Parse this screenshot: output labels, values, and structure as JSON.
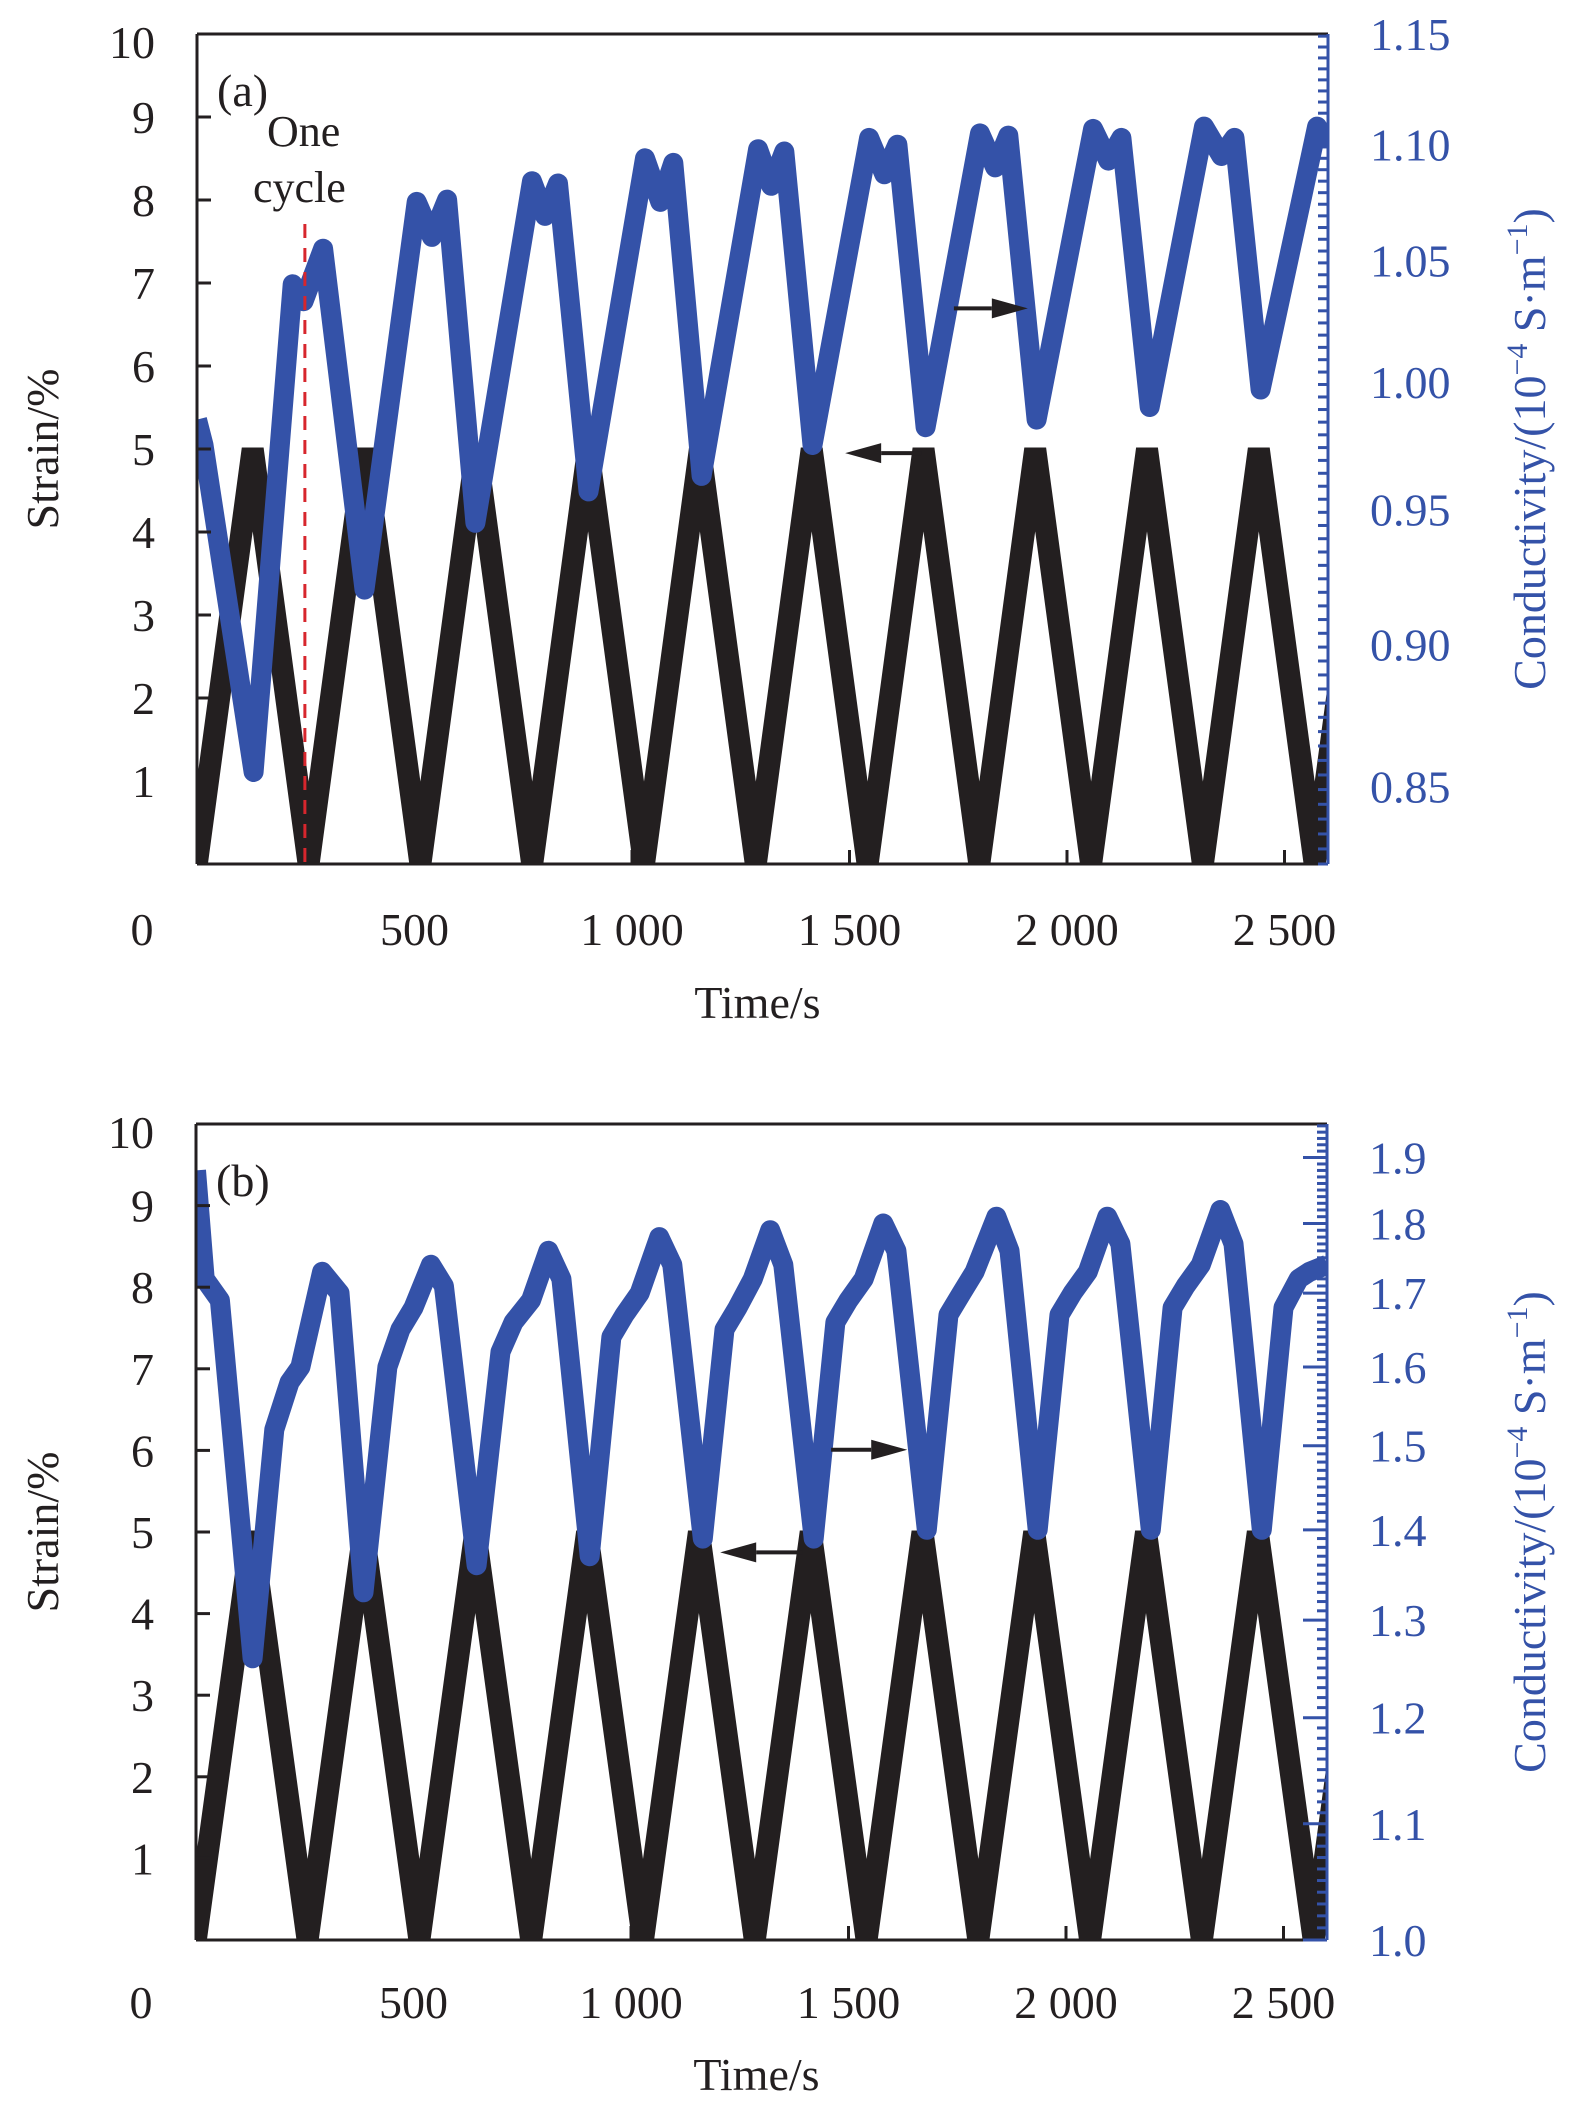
{
  "chart_data": [
    {
      "type": "line",
      "panel_label": "(a)",
      "xlabel": "Time/s",
      "ylabel": "Strain/%",
      "y2label_prefix": "Conductivity/(10",
      "y2label_exp": "−4",
      "y2label_mid": " S·m",
      "y2label_exp2": "−1",
      "y2label_suffix": ")",
      "xlim": [
        0,
        2600
      ],
      "ylim": [
        0,
        10
      ],
      "y2lim": [
        0.824,
        1.15
      ],
      "y2scale": "log",
      "x_ticks": [
        0,
        500,
        1000,
        1500,
        2000,
        2500
      ],
      "x_tick_labels": [
        "0",
        "500",
        "1 000",
        "1 500",
        "2 000",
        "2 500"
      ],
      "y_ticks": [
        0,
        1,
        2,
        3,
        4,
        5,
        6,
        7,
        8,
        9,
        10
      ],
      "y_tick_labels": [
        "0",
        "1",
        "2",
        "3",
        "4",
        "5",
        "6",
        "7",
        "8",
        "9",
        "10"
      ],
      "y2_ticks": [
        0.85,
        0.9,
        0.95,
        1.0,
        1.05,
        1.1,
        1.15
      ],
      "y2_tick_labels": [
        "0.85",
        "0.90",
        "0.95",
        "1.00",
        "1.05",
        "1.10",
        "1.15"
      ],
      "annotation": {
        "text_line1": "One",
        "text_line2": "cycle",
        "x": 248
      },
      "arrows": [
        {
          "direction": "right",
          "series": "Conductivity",
          "x_from": 1740,
          "x_to": 1910,
          "y2": 1.03
        },
        {
          "direction": "left",
          "series": "Strain",
          "x_from": 1665,
          "x_to": 1490,
          "y": 4.95
        }
      ],
      "colors": {
        "strain": "#231f20",
        "conductivity": "#3452a8",
        "annotation_line": "#d7262d"
      },
      "series": [
        {
          "name": "Strain",
          "axis": "left",
          "period": 257,
          "amplitude": 5.0,
          "x_peaks": [
            128,
            385,
            642,
            899,
            1156,
            1413,
            1670,
            1927,
            2184,
            2441
          ]
        },
        {
          "name": "Conductivity",
          "axis": "right",
          "points": [
            [
              0,
              0.985
            ],
            [
              15,
              0.975
            ],
            [
              130,
              0.855
            ],
            [
              220,
              1.04
            ],
            [
              245,
              1.033
            ],
            [
              290,
              1.055
            ],
            [
              385,
              0.92
            ],
            [
              505,
              1.075
            ],
            [
              540,
              1.06
            ],
            [
              575,
              1.076
            ],
            [
              640,
              0.945
            ],
            [
              770,
              1.084
            ],
            [
              800,
              1.069
            ],
            [
              830,
              1.083
            ],
            [
              900,
              0.957
            ],
            [
              1030,
              1.094
            ],
            [
              1065,
              1.075
            ],
            [
              1095,
              1.092
            ],
            [
              1160,
              0.963
            ],
            [
              1290,
              1.098
            ],
            [
              1320,
              1.082
            ],
            [
              1350,
              1.097
            ],
            [
              1415,
              0.975
            ],
            [
              1545,
              1.103
            ],
            [
              1580,
              1.087
            ],
            [
              1610,
              1.1
            ],
            [
              1675,
              0.982
            ],
            [
              1800,
              1.105
            ],
            [
              1835,
              1.09
            ],
            [
              1865,
              1.104
            ],
            [
              1930,
              0.985
            ],
            [
              2060,
              1.107
            ],
            [
              2095,
              1.093
            ],
            [
              2125,
              1.103
            ],
            [
              2190,
              0.99
            ],
            [
              2315,
              1.108
            ],
            [
              2355,
              1.095
            ],
            [
              2385,
              1.103
            ],
            [
              2445,
              0.997
            ],
            [
              2575,
              1.108
            ],
            [
              2600,
              1.1
            ]
          ]
        }
      ]
    },
    {
      "type": "line",
      "panel_label": "(b)",
      "xlabel": "Time/s",
      "ylabel": "Strain/%",
      "y2label_prefix": "Conductivity/(10",
      "y2label_exp": "−4",
      "y2label_mid": " S·m",
      "y2label_exp2": "−1",
      "y2label_suffix": ")",
      "xlim": [
        0,
        2600
      ],
      "ylim": [
        0,
        10
      ],
      "y2lim": [
        1.0,
        1.953
      ],
      "y2scale": "log",
      "x_ticks": [
        0,
        500,
        1000,
        1500,
        2000,
        2500
      ],
      "x_tick_labels": [
        "0",
        "500",
        "1 000",
        "1 500",
        "2 000",
        "2 500"
      ],
      "y_ticks": [
        0,
        1,
        2,
        3,
        4,
        5,
        6,
        7,
        8,
        9,
        10
      ],
      "y_tick_labels": [
        "0",
        "1",
        "2",
        "3",
        "4",
        "5",
        "6",
        "7",
        "8",
        "9",
        "10"
      ],
      "y2_ticks": [
        1.0,
        1.1,
        1.2,
        1.3,
        1.4,
        1.5,
        1.6,
        1.7,
        1.8,
        1.9
      ],
      "y2_tick_labels": [
        "1.0",
        "1.1",
        "1.2",
        "1.3",
        "1.4",
        "1.5",
        "1.6",
        "1.7",
        "1.8",
        "1.9"
      ],
      "arrows": [
        {
          "direction": "right",
          "series": "Conductivity",
          "x_from": 1460,
          "x_to": 1635,
          "y2": 1.495
        },
        {
          "direction": "left",
          "series": "Strain",
          "x_from": 1395,
          "x_to": 1205,
          "y": 4.75
        }
      ],
      "colors": {
        "strain": "#231f20",
        "conductivity": "#3452a8"
      },
      "series": [
        {
          "name": "Strain",
          "axis": "left",
          "period": 257,
          "amplitude": 5.0,
          "x_peaks": [
            128,
            385,
            642,
            899,
            1156,
            1413,
            1670,
            1927,
            2184,
            2441
          ]
        },
        {
          "name": "Conductivity",
          "axis": "right",
          "points": [
            [
              0,
              1.88
            ],
            [
              20,
              1.72
            ],
            [
              55,
              1.69
            ],
            [
              130,
              1.26
            ],
            [
              180,
              1.52
            ],
            [
              215,
              1.58
            ],
            [
              240,
              1.6
            ],
            [
              290,
              1.73
            ],
            [
              330,
              1.7
            ],
            [
              385,
              1.33
            ],
            [
              440,
              1.6
            ],
            [
              470,
              1.65
            ],
            [
              500,
              1.68
            ],
            [
              540,
              1.74
            ],
            [
              570,
              1.71
            ],
            [
              645,
              1.36
            ],
            [
              700,
              1.62
            ],
            [
              730,
              1.66
            ],
            [
              770,
              1.69
            ],
            [
              810,
              1.76
            ],
            [
              840,
              1.72
            ],
            [
              905,
              1.37
            ],
            [
              955,
              1.64
            ],
            [
              985,
              1.67
            ],
            [
              1020,
              1.7
            ],
            [
              1065,
              1.78
            ],
            [
              1095,
              1.74
            ],
            [
              1165,
              1.39
            ],
            [
              1215,
              1.65
            ],
            [
              1245,
              1.68
            ],
            [
              1280,
              1.72
            ],
            [
              1320,
              1.79
            ],
            [
              1350,
              1.74
            ],
            [
              1420,
              1.39
            ],
            [
              1470,
              1.66
            ],
            [
              1500,
              1.69
            ],
            [
              1535,
              1.72
            ],
            [
              1580,
              1.8
            ],
            [
              1610,
              1.76
            ],
            [
              1680,
              1.4
            ],
            [
              1730,
              1.67
            ],
            [
              1760,
              1.7
            ],
            [
              1790,
              1.73
            ],
            [
              1840,
              1.81
            ],
            [
              1870,
              1.76
            ],
            [
              1935,
              1.4
            ],
            [
              1985,
              1.67
            ],
            [
              2015,
              1.7
            ],
            [
              2050,
              1.73
            ],
            [
              2095,
              1.81
            ],
            [
              2125,
              1.77
            ],
            [
              2195,
              1.4
            ],
            [
              2245,
              1.68
            ],
            [
              2275,
              1.71
            ],
            [
              2310,
              1.74
            ],
            [
              2355,
              1.82
            ],
            [
              2385,
              1.77
            ],
            [
              2450,
              1.4
            ],
            [
              2500,
              1.68
            ],
            [
              2535,
              1.72
            ],
            [
              2560,
              1.73
            ],
            [
              2600,
              1.74
            ]
          ]
        }
      ]
    }
  ]
}
